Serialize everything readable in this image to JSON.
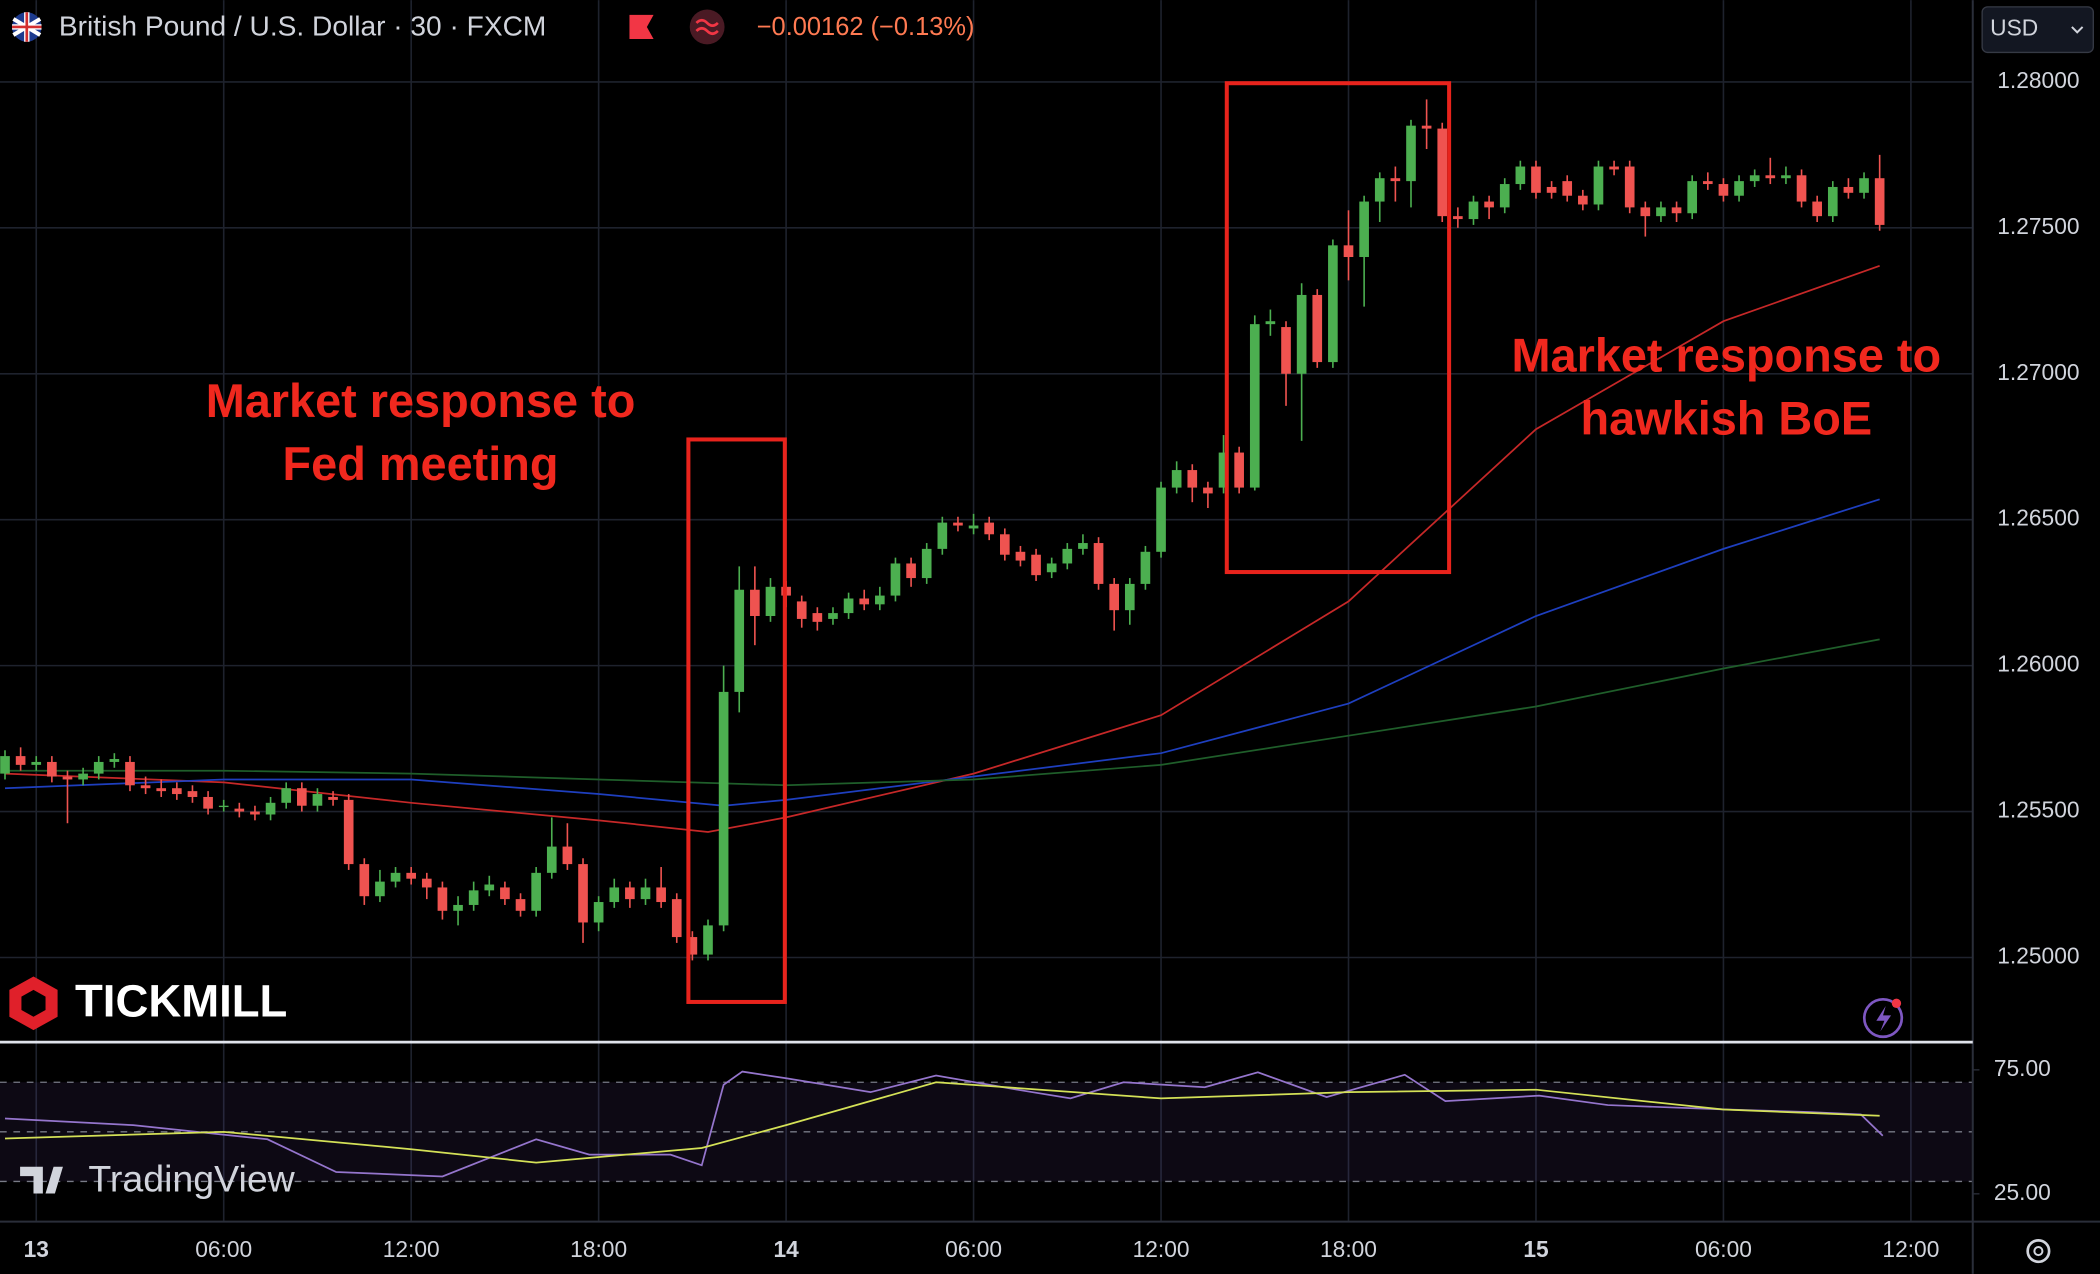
{
  "header": {
    "title": "British Pound / U.S. Dollar · 30 · FXCM",
    "change": "−0.00162 (−0.13%)",
    "currency": "USD"
  },
  "watermarks": {
    "broker": "TICKMILL",
    "platform": "TradingView"
  },
  "chart_data": [
    {
      "type": "candlestick",
      "up_color": "#4caf50",
      "down_color": "#ef5350",
      "grid": true,
      "xlim": [
        -1.16,
        61.98
      ],
      "ylim": [
        1.2471,
        1.2828
      ],
      "xticks": [
        {
          "value": 0,
          "label": "13"
        },
        {
          "value": 6,
          "label": "06:00"
        },
        {
          "value": 12,
          "label": "12:00"
        },
        {
          "value": 18,
          "label": "18:00"
        },
        {
          "value": 24,
          "label": "14"
        },
        {
          "value": 30,
          "label": "06:00"
        },
        {
          "value": 36,
          "label": "12:00"
        },
        {
          "value": 42,
          "label": "18:00"
        },
        {
          "value": 48,
          "label": "15"
        },
        {
          "value": 54,
          "label": "06:00"
        },
        {
          "value": 60,
          "label": "12:00"
        }
      ],
      "yticks": [
        {
          "value": 1.25,
          "label": "1.25000"
        },
        {
          "value": 1.255,
          "label": "1.25500"
        },
        {
          "value": 1.26,
          "label": "1.26000"
        },
        {
          "value": 1.265,
          "label": "1.26500"
        },
        {
          "value": 1.27,
          "label": "1.27000"
        },
        {
          "value": 1.275,
          "label": "1.27500"
        },
        {
          "value": 1.28,
          "label": "1.28000"
        }
      ],
      "x": [
        -1,
        -0.5,
        0,
        0.5,
        1,
        1.5,
        2,
        2.5,
        3,
        3.5,
        4,
        4.5,
        5,
        5.5,
        6,
        6.5,
        7,
        7.5,
        8,
        8.5,
        9,
        9.5,
        10,
        10.5,
        11,
        11.5,
        12,
        12.5,
        13,
        13.5,
        14,
        14.5,
        15,
        15.5,
        16,
        16.5,
        17,
        17.5,
        18,
        18.5,
        19,
        19.5,
        20,
        20.5,
        21,
        21.5,
        22,
        22.5,
        23,
        23.5,
        24,
        24.5,
        25,
        25.5,
        26,
        26.5,
        27,
        27.5,
        28,
        28.5,
        29,
        29.5,
        30,
        30.5,
        31,
        31.5,
        32,
        32.5,
        33,
        33.5,
        34,
        34.5,
        35,
        35.5,
        36,
        36.5,
        37,
        37.5,
        38,
        38.5,
        39,
        39.5,
        40,
        40.5,
        41,
        41.5,
        42,
        42.5,
        43,
        43.5,
        44,
        44.5,
        45,
        45.5,
        46,
        46.5,
        47,
        47.5,
        48,
        48.5,
        49,
        49.5,
        50,
        50.5,
        51,
        51.5,
        52,
        52.5,
        53,
        53.5,
        54,
        54.5,
        55,
        55.5,
        56,
        56.5,
        57,
        57.5,
        58,
        58.5,
        59
      ],
      "ohlc": [
        [
          1.2563,
          1.2571,
          1.2561,
          1.2569
        ],
        [
          1.2569,
          1.2572,
          1.2564,
          1.2566
        ],
        [
          1.2566,
          1.2569,
          1.2564,
          1.2567
        ],
        [
          1.2567,
          1.2569,
          1.256,
          1.2562
        ],
        [
          1.2562,
          1.2564,
          1.2546,
          1.2561
        ],
        [
          1.2561,
          1.2565,
          1.2559,
          1.2563
        ],
        [
          1.2563,
          1.2569,
          1.2561,
          1.2567
        ],
        [
          1.2567,
          1.257,
          1.2565,
          1.2568
        ],
        [
          1.2567,
          1.2569,
          1.2557,
          1.2559
        ],
        [
          1.2559,
          1.2562,
          1.2556,
          1.2558
        ],
        [
          1.2558,
          1.2561,
          1.2555,
          1.2557
        ],
        [
          1.2558,
          1.256,
          1.2554,
          1.2556
        ],
        [
          1.2557,
          1.2559,
          1.2553,
          1.2555
        ],
        [
          1.2555,
          1.2557,
          1.2549,
          1.2551
        ],
        [
          1.2552,
          1.2554,
          1.255,
          1.2552
        ],
        [
          1.2551,
          1.2553,
          1.2548,
          1.255
        ],
        [
          1.255,
          1.2552,
          1.2547,
          1.2549
        ],
        [
          1.2549,
          1.2555,
          1.2547,
          1.2553
        ],
        [
          1.2553,
          1.256,
          1.2551,
          1.2558
        ],
        [
          1.2558,
          1.256,
          1.255,
          1.2552
        ],
        [
          1.2552,
          1.2558,
          1.255,
          1.2556
        ],
        [
          1.2555,
          1.2557,
          1.2552,
          1.2554
        ],
        [
          1.2554,
          1.2556,
          1.253,
          1.2532
        ],
        [
          1.2532,
          1.2534,
          1.2518,
          1.2521
        ],
        [
          1.2521,
          1.253,
          1.2519,
          1.2526
        ],
        [
          1.2526,
          1.2531,
          1.2524,
          1.2529
        ],
        [
          1.2529,
          1.2531,
          1.2525,
          1.2527
        ],
        [
          1.2527,
          1.2529,
          1.252,
          1.2524
        ],
        [
          1.2524,
          1.2526,
          1.2513,
          1.2516
        ],
        [
          1.2516,
          1.2521,
          1.2511,
          1.2518
        ],
        [
          1.2518,
          1.2526,
          1.2516,
          1.2523
        ],
        [
          1.2523,
          1.2528,
          1.2521,
          1.2525
        ],
        [
          1.2524,
          1.2526,
          1.2518,
          1.252
        ],
        [
          1.252,
          1.2522,
          1.2514,
          1.2516
        ],
        [
          1.2516,
          1.2531,
          1.2514,
          1.2529
        ],
        [
          1.2529,
          1.2548,
          1.2527,
          1.2538
        ],
        [
          1.2538,
          1.2546,
          1.253,
          1.2532
        ],
        [
          1.2532,
          1.2534,
          1.2505,
          1.2512
        ],
        [
          1.2512,
          1.2521,
          1.2509,
          1.2519
        ],
        [
          1.2519,
          1.2527,
          1.2517,
          1.2524
        ],
        [
          1.2524,
          1.2526,
          1.2517,
          1.252
        ],
        [
          1.252,
          1.2527,
          1.2518,
          1.2524
        ],
        [
          1.2524,
          1.2531,
          1.2517,
          1.2519
        ],
        [
          1.252,
          1.2522,
          1.2505,
          1.2507
        ],
        [
          1.2507,
          1.2509,
          1.2499,
          1.2501
        ],
        [
          1.2501,
          1.2513,
          1.2499,
          1.2511
        ],
        [
          1.2511,
          1.26,
          1.2509,
          1.2591
        ],
        [
          1.2591,
          1.2634,
          1.2584,
          1.2626
        ],
        [
          1.2626,
          1.2634,
          1.2607,
          1.2617
        ],
        [
          1.2617,
          1.263,
          1.2615,
          1.2627
        ],
        [
          1.2627,
          1.2629,
          1.262,
          1.2624
        ],
        [
          1.2622,
          1.2624,
          1.2613,
          1.2616
        ],
        [
          1.2618,
          1.262,
          1.2612,
          1.2615
        ],
        [
          1.2616,
          1.262,
          1.2614,
          1.2618
        ],
        [
          1.2618,
          1.2625,
          1.2616,
          1.2623
        ],
        [
          1.2623,
          1.2626,
          1.2619,
          1.2621
        ],
        [
          1.2621,
          1.2627,
          1.2619,
          1.2624
        ],
        [
          1.2624,
          1.2637,
          1.2622,
          1.2635
        ],
        [
          1.2635,
          1.2637,
          1.2627,
          1.263
        ],
        [
          1.263,
          1.2642,
          1.2628,
          1.264
        ],
        [
          1.264,
          1.2651,
          1.2638,
          1.2649
        ],
        [
          1.2649,
          1.2651,
          1.2646,
          1.2648
        ],
        [
          1.2647,
          1.2652,
          1.2645,
          1.2648
        ],
        [
          1.2649,
          1.2651,
          1.2643,
          1.2645
        ],
        [
          1.2645,
          1.2647,
          1.2636,
          1.2638
        ],
        [
          1.2639,
          1.2641,
          1.2634,
          1.2636
        ],
        [
          1.2638,
          1.264,
          1.2629,
          1.2631
        ],
        [
          1.2632,
          1.2637,
          1.263,
          1.2635
        ],
        [
          1.2635,
          1.2642,
          1.2633,
          1.264
        ],
        [
          1.264,
          1.2645,
          1.2638,
          1.2642
        ],
        [
          1.2642,
          1.2644,
          1.2626,
          1.2628
        ],
        [
          1.2628,
          1.263,
          1.2612,
          1.2619
        ],
        [
          1.2619,
          1.263,
          1.2614,
          1.2628
        ],
        [
          1.2628,
          1.2641,
          1.2626,
          1.2639
        ],
        [
          1.2639,
          1.2663,
          1.2637,
          1.2661
        ],
        [
          1.2661,
          1.267,
          1.2659,
          1.2667
        ],
        [
          1.2667,
          1.2669,
          1.2656,
          1.2661
        ],
        [
          1.2661,
          1.2663,
          1.2654,
          1.2659
        ],
        [
          1.2661,
          1.2679,
          1.2659,
          1.2673
        ],
        [
          1.2673,
          1.2675,
          1.2659,
          1.2661
        ],
        [
          1.2661,
          1.272,
          1.266,
          1.2717
        ],
        [
          1.2717,
          1.2722,
          1.2713,
          1.2718
        ],
        [
          1.2716,
          1.2718,
          1.2689,
          1.27
        ],
        [
          1.27,
          1.2731,
          1.2677,
          1.2727
        ],
        [
          1.2727,
          1.2729,
          1.2702,
          1.2704
        ],
        [
          1.2704,
          1.2746,
          1.2702,
          1.2744
        ],
        [
          1.2744,
          1.2756,
          1.2732,
          1.274
        ],
        [
          1.274,
          1.2761,
          1.2723,
          1.2759
        ],
        [
          1.2759,
          1.2769,
          1.2752,
          1.2767
        ],
        [
          1.2767,
          1.2771,
          1.2759,
          1.2766
        ],
        [
          1.2766,
          1.2787,
          1.2757,
          1.2785
        ],
        [
          1.2785,
          1.2794,
          1.2777,
          1.2784
        ],
        [
          1.2784,
          1.2786,
          1.2752,
          1.2754
        ],
        [
          1.2754,
          1.2757,
          1.275,
          1.2753
        ],
        [
          1.2753,
          1.2761,
          1.2751,
          1.2759
        ],
        [
          1.2759,
          1.2761,
          1.2753,
          1.2757
        ],
        [
          1.2757,
          1.2767,
          1.2755,
          1.2765
        ],
        [
          1.2765,
          1.2773,
          1.2763,
          1.2771
        ],
        [
          1.2771,
          1.2773,
          1.276,
          1.2762
        ],
        [
          1.2764,
          1.2766,
          1.276,
          1.2762
        ],
        [
          1.2766,
          1.2768,
          1.2759,
          1.2761
        ],
        [
          1.2761,
          1.2763,
          1.2756,
          1.2758
        ],
        [
          1.2758,
          1.2773,
          1.2756,
          1.2771
        ],
        [
          1.2771,
          1.2773,
          1.2768,
          1.277
        ],
        [
          1.2771,
          1.2773,
          1.2755,
          1.2757
        ],
        [
          1.2757,
          1.2759,
          1.2747,
          1.2754
        ],
        [
          1.2754,
          1.2759,
          1.2752,
          1.2757
        ],
        [
          1.2757,
          1.2759,
          1.2752,
          1.2755
        ],
        [
          1.2755,
          1.2768,
          1.2753,
          1.2766
        ],
        [
          1.2766,
          1.2769,
          1.2763,
          1.2765
        ],
        [
          1.2765,
          1.2767,
          1.2759,
          1.2761
        ],
        [
          1.2761,
          1.2768,
          1.2759,
          1.2766
        ],
        [
          1.2766,
          1.277,
          1.2764,
          1.2768
        ],
        [
          1.2768,
          1.2774,
          1.2765,
          1.2767
        ],
        [
          1.2767,
          1.2771,
          1.2765,
          1.2768
        ],
        [
          1.2768,
          1.277,
          1.2757,
          1.2759
        ],
        [
          1.2759,
          1.2761,
          1.2752,
          1.2754
        ],
        [
          1.2754,
          1.2766,
          1.2752,
          1.2764
        ],
        [
          1.2764,
          1.2767,
          1.276,
          1.2762
        ],
        [
          1.2762,
          1.2769,
          1.276,
          1.2767
        ],
        [
          1.2767,
          1.2775,
          1.2749,
          1.2751
        ]
      ],
      "overlays": [
        {
          "color": "#c62828",
          "x": [
            -1,
            6,
            12,
            18,
            21.5,
            24,
            30,
            36,
            42,
            48,
            54,
            59
          ],
          "values": [
            1.2563,
            1.256,
            1.2553,
            1.2547,
            1.2543,
            1.2548,
            1.2563,
            1.2583,
            1.2622,
            1.2681,
            1.2718,
            1.2737
          ]
        },
        {
          "color": "#1e3fbf",
          "x": [
            -1,
            6,
            12,
            18,
            22,
            24,
            30,
            36,
            42,
            48,
            54,
            59
          ],
          "values": [
            1.2558,
            1.2561,
            1.2561,
            1.2556,
            1.2552,
            1.2554,
            1.2562,
            1.257,
            1.2587,
            1.2617,
            1.264,
            1.2657
          ]
        },
        {
          "color": "#1f5e2a",
          "x": [
            -1,
            6,
            12,
            18,
            24,
            30,
            36,
            42,
            48,
            54,
            59
          ],
          "values": [
            1.2564,
            1.2564,
            1.2563,
            1.2561,
            1.2559,
            1.2561,
            1.2566,
            1.2576,
            1.2586,
            1.2599,
            1.2609
          ]
        }
      ],
      "annotations": [
        {
          "lines": [
            "Market response to",
            "Fed meeting"
          ]
        },
        {
          "lines": [
            "Market response to",
            "hawkish BoE"
          ]
        }
      ]
    },
    {
      "type": "line",
      "xlim": [
        -1.16,
        61.98
      ],
      "ylim": [
        13.8,
        85.1
      ],
      "yticks": [
        {
          "value": 25,
          "label": "25.00"
        },
        {
          "value": 75,
          "label": "75.00"
        }
      ],
      "bands": [
        30,
        50,
        70
      ],
      "series": [
        {
          "color": "#9575cd",
          "x": [
            -1,
            3.1,
            7.4,
            9.6,
            13,
            16,
            17.7,
            20.3,
            21.3,
            22,
            22.6,
            24,
            26.7,
            28.8,
            31.4,
            33.1,
            34.8,
            37.4,
            39.1,
            41.3,
            43.8,
            45.1,
            48.1,
            50.3,
            54.1,
            56.7,
            58.4,
            59.1
          ],
          "values": [
            55.4,
            52.7,
            47,
            33.8,
            32,
            47,
            40.8,
            40.8,
            36.5,
            69,
            74.3,
            71.6,
            66,
            72.7,
            67,
            63.5,
            70,
            68,
            74,
            64,
            73,
            62.4,
            64.6,
            60.8,
            59,
            58,
            57,
            48.4
          ]
        },
        {
          "color": "#d4e157",
          "x": [
            -1,
            6,
            12,
            16,
            21.3,
            24,
            28.8,
            36,
            42,
            48,
            54,
            59
          ],
          "values": [
            47.3,
            50,
            43,
            37.6,
            43.5,
            52.7,
            70,
            63.5,
            66,
            67,
            59,
            56.5
          ]
        }
      ]
    }
  ]
}
